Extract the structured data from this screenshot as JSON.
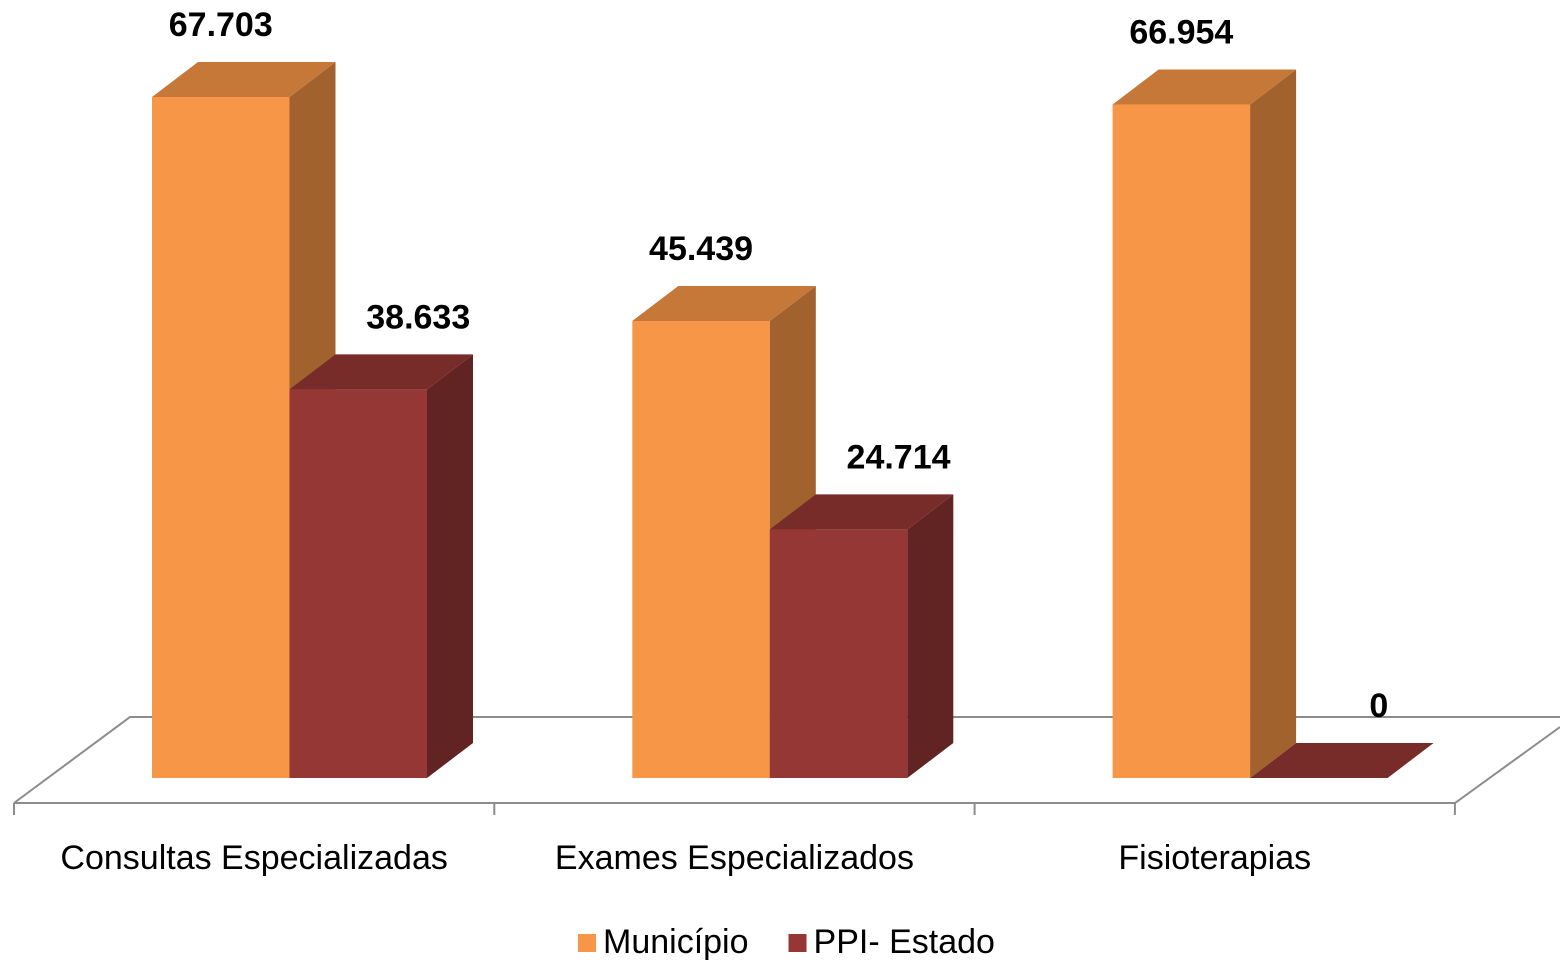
{
  "chart_data": {
    "type": "bar3d",
    "categories": [
      "Consultas Especializadas",
      "Exames Especializados",
      "Fisioterapias"
    ],
    "series": [
      {
        "name": "Município",
        "color": "#F79646",
        "values": [
          67703,
          45439,
          66954
        ],
        "value_labels": [
          "67.703",
          "45.439",
          "66.954"
        ]
      },
      {
        "name": "PPI- Estado",
        "color": "#953735",
        "values": [
          38633,
          24714,
          0
        ],
        "value_labels": [
          "38.633",
          "24.714",
          "0"
        ]
      }
    ],
    "legend": "bottom"
  }
}
